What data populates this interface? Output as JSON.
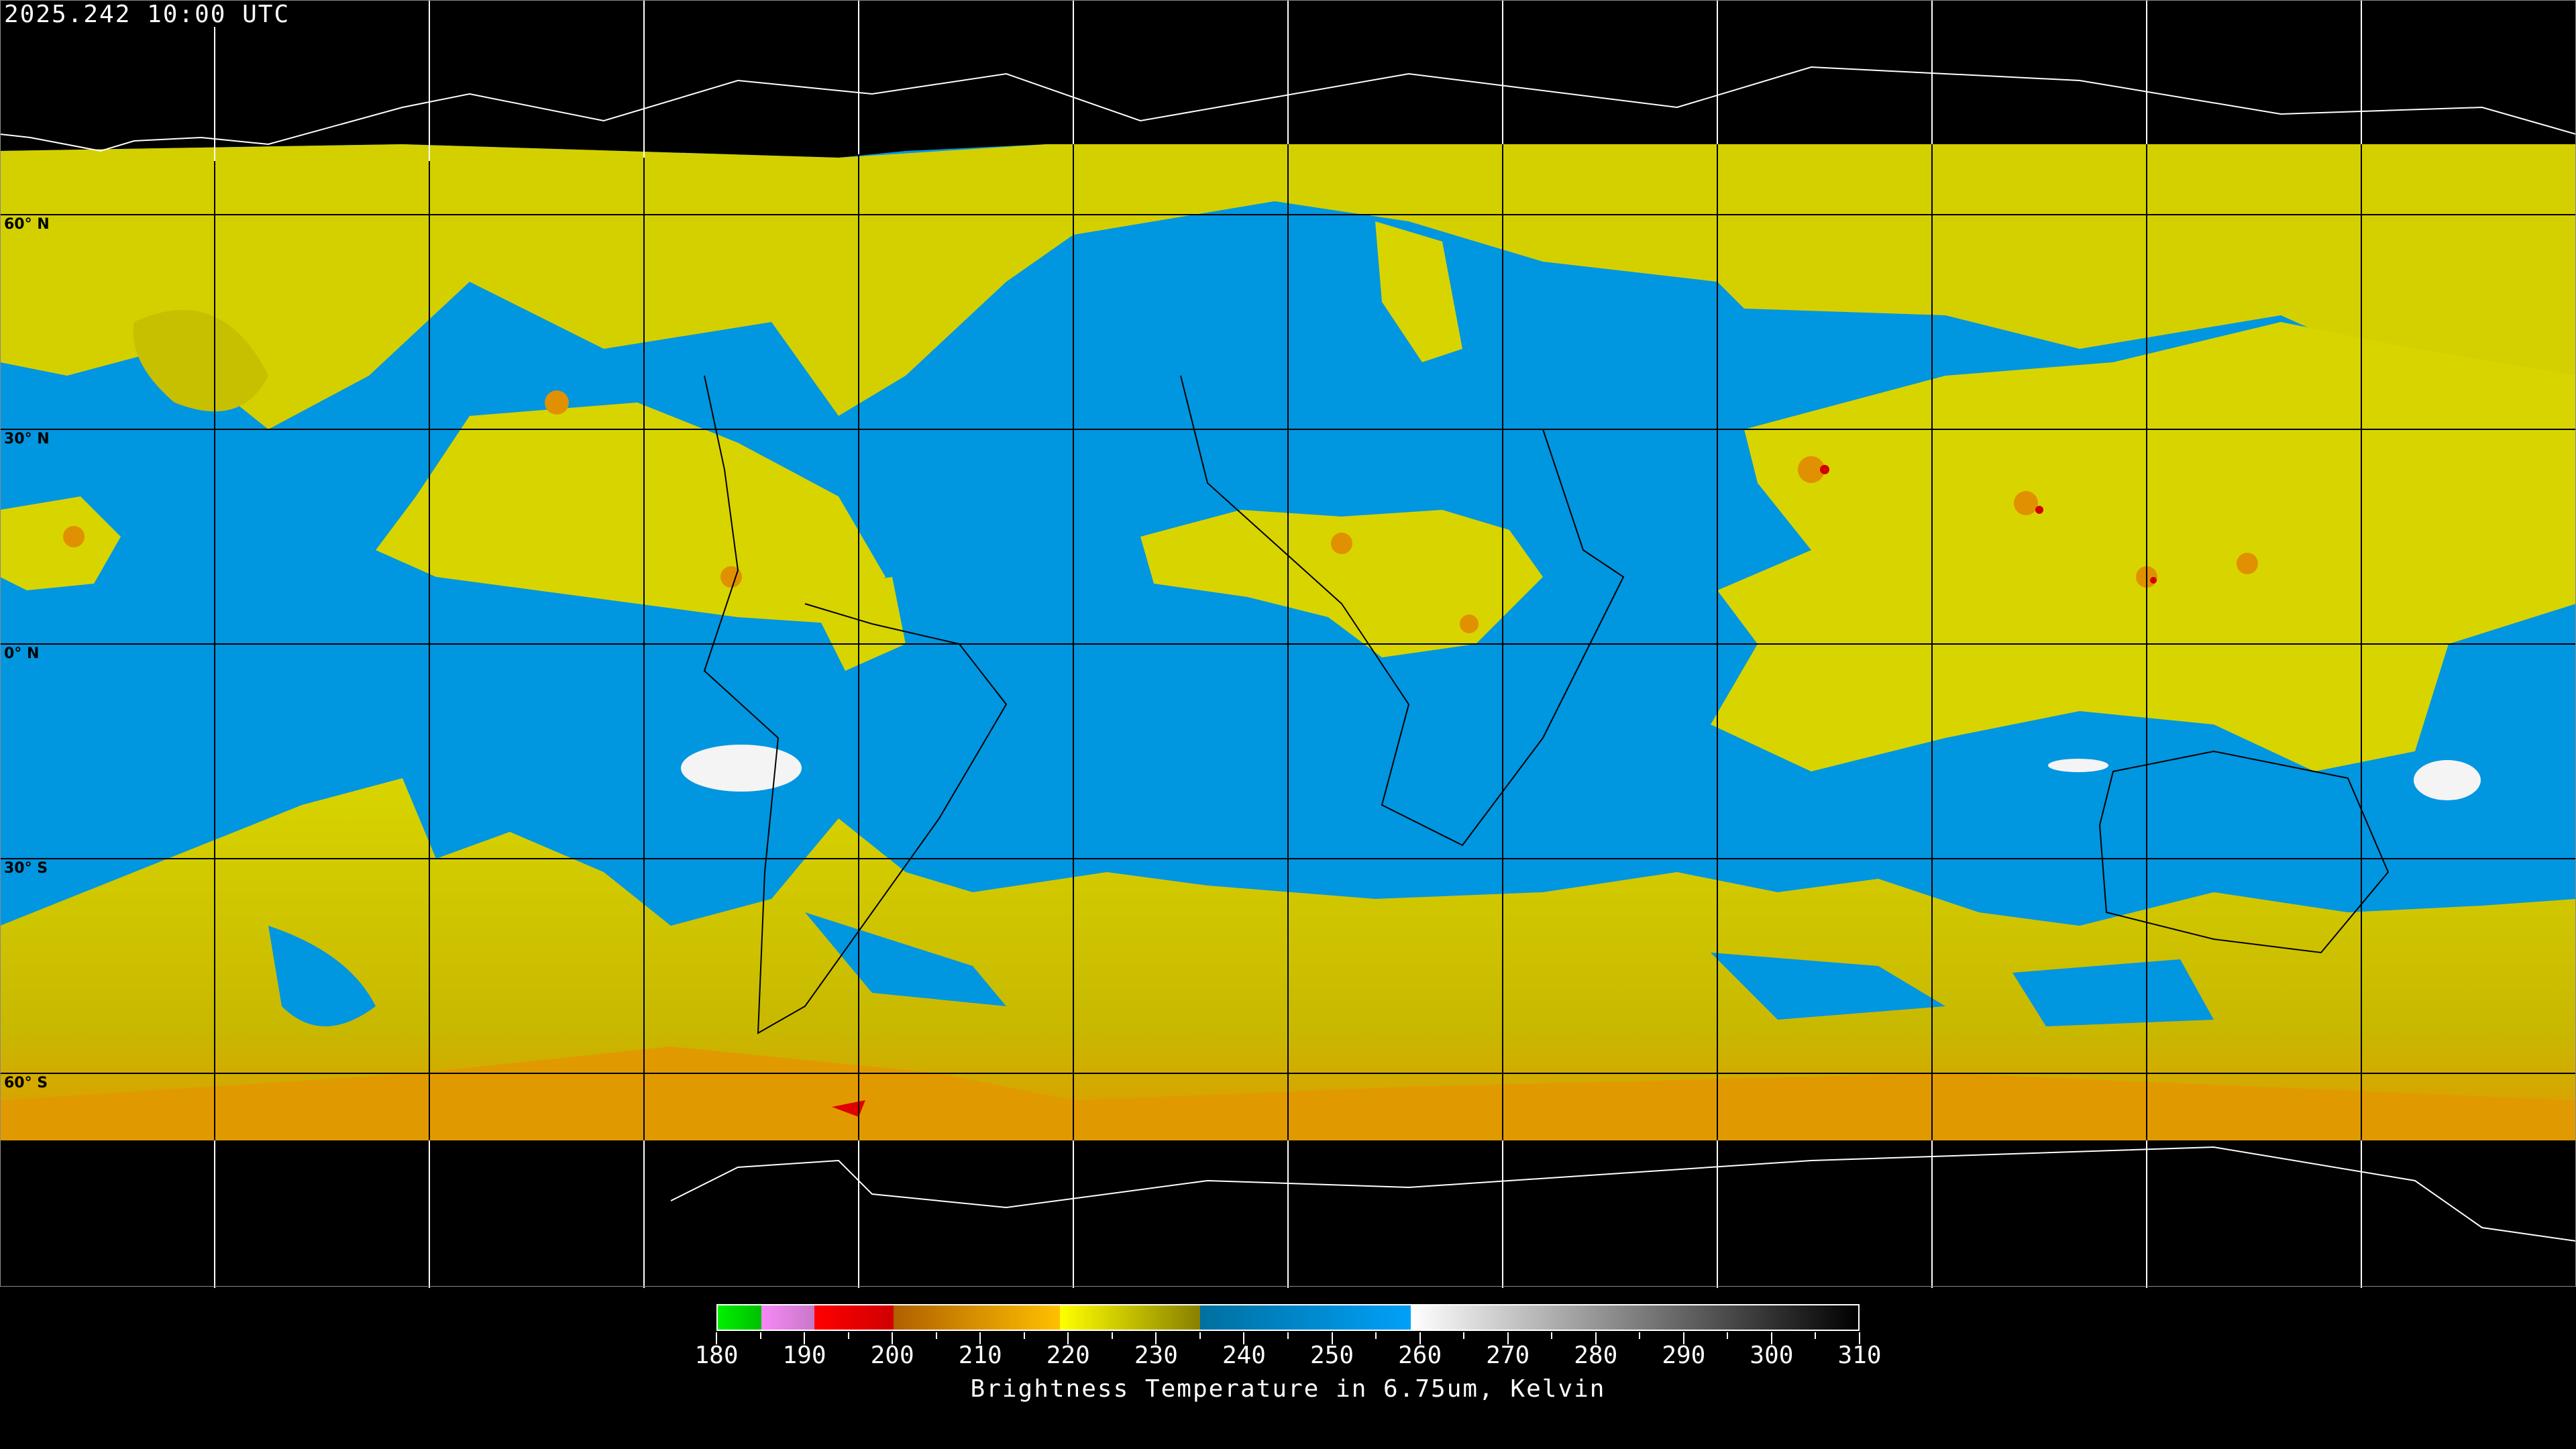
{
  "header": {
    "timestamp": "2025.242 10:00 UTC"
  },
  "map": {
    "projection": "equirectangular",
    "lat_labels": [
      "60° N",
      "30° N",
      "0° N",
      "30° S",
      "60° S"
    ],
    "grid_spacing_degrees": 30,
    "colors": {
      "moist_yellow": "#d8d400",
      "dry_blue": "#0096e0",
      "cold_orange": "#e09a00",
      "cold_red": "#e00000",
      "no_data": "#000000"
    }
  },
  "colorbar": {
    "title": "Brightness Temperature in 6.75um, Kelvin",
    "min": 180,
    "max": 310,
    "tick_labels": [
      "180",
      "190",
      "200",
      "210",
      "220",
      "230",
      "240",
      "250",
      "260",
      "270",
      "280",
      "290",
      "300",
      "310"
    ],
    "segments": [
      {
        "from": 180,
        "to": 185,
        "start": "#00f000",
        "end": "#00c000"
      },
      {
        "from": 185,
        "to": 191,
        "start": "#f888f8",
        "end": "#c878c8"
      },
      {
        "from": 191,
        "to": 200,
        "start": "#ff0000",
        "end": "#d00000"
      },
      {
        "from": 200,
        "to": 219,
        "start": "#b06000",
        "end": "#ffc000"
      },
      {
        "from": 219,
        "to": 235,
        "start": "#ffff00",
        "end": "#888000"
      },
      {
        "from": 235,
        "to": 259,
        "start": "#0070a0",
        "end": "#00a0f8"
      },
      {
        "from": 259,
        "to": 310,
        "start": "#ffffff",
        "end": "#000000"
      }
    ]
  }
}
